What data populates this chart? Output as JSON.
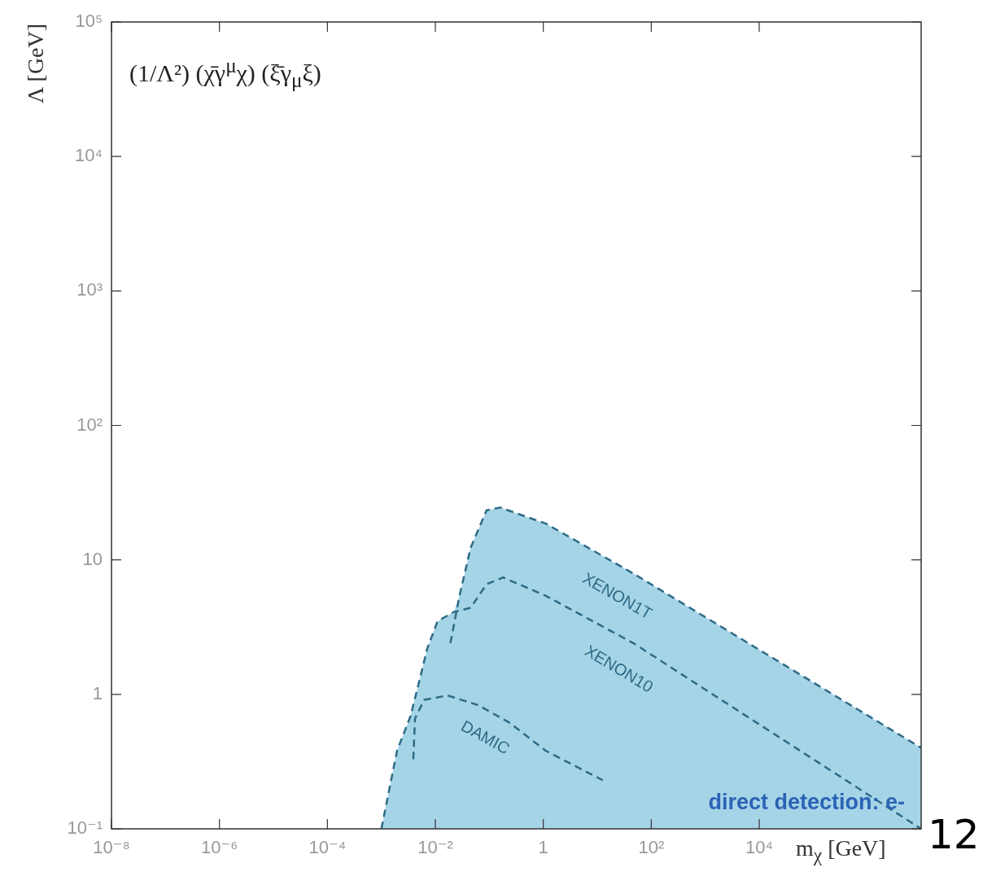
{
  "chart_data": {
    "type": "line",
    "xlabel": "m$_{χ}$ [GeV]",
    "ylabel": "Λ [GeV]",
    "log": "xy",
    "xlim": [
      1e-08,
      10000000.0
    ],
    "ylim": [
      0.1,
      100000
    ],
    "xticks": [
      {
        "value": 1e-08,
        "label": "10⁻⁸"
      },
      {
        "value": 1e-06,
        "label": "10⁻⁶"
      },
      {
        "value": 0.0001,
        "label": "10⁻⁴"
      },
      {
        "value": 0.01,
        "label": "10⁻²"
      },
      1,
      {
        "value": 100,
        "label": "10²"
      },
      {
        "value": 10000,
        "label": "10⁴"
      }
    ],
    "yticks": [
      {
        "value": 0.1,
        "label": "10⁻¹"
      },
      1,
      10,
      {
        "value": 100,
        "label": "10²"
      },
      {
        "value": 1000,
        "label": "10³"
      },
      {
        "value": 10000,
        "label": "10⁴"
      },
      {
        "value": 100000,
        "label": "10⁵"
      }
    ],
    "line_style": "dashed",
    "marker": "none",
    "annotations": [
      "(1/Λ²) (χ̄γ$^{μ}$χ) (ξ̄γ$_{μ}$ξ)",
      "direct detection: e-",
      "12"
    ],
    "series": [
      {
        "type": "area",
        "color": "#a6d4e7",
        "x": [
          0.001,
          0.00195,
          0.00347,
          0.0049,
          0.0071,
          0.011,
          0.022,
          0.028,
          0.045,
          0.089,
          0.16,
          1.12,
          47,
          10000000
        ],
        "values": [
          0.1,
          0.38,
          0.69,
          1.2,
          2.2,
          3.5,
          4.1,
          5.4,
          12.3,
          23.4,
          24.5,
          18.6,
          7.9,
          0.4
        ]
      },
      {
        "name": "XENON1T",
        "color": "#2e6b86",
        "x": [
          0.019,
          0.028,
          0.045,
          0.089,
          0.16,
          1.12,
          47,
          10000000
        ],
        "values": [
          2.4,
          5.4,
          12.3,
          23.4,
          24.5,
          18.6,
          7.9,
          0.4
        ]
      },
      {
        "name": "XENON10",
        "color": "#2e6b86",
        "x": [
          0.001,
          0.00195,
          0.00347,
          0.0049,
          0.0071,
          0.011,
          0.022,
          0.045,
          0.089,
          0.18,
          1.12,
          47,
          10000000
        ],
        "values": [
          0.1,
          0.38,
          0.69,
          1.2,
          2.2,
          3.5,
          4.1,
          4.4,
          6.6,
          7.4,
          5.4,
          2.4,
          0.1
        ]
      },
      {
        "name": "DAMIC",
        "color": "#2e6b86",
        "x": [
          0.0039,
          0.0042,
          0.0062,
          0.017,
          0.063,
          0.23,
          1.12,
          12.6
        ],
        "values": [
          0.33,
          0.66,
          0.91,
          0.98,
          0.83,
          0.62,
          0.38,
          0.23
        ]
      }
    ]
  }
}
